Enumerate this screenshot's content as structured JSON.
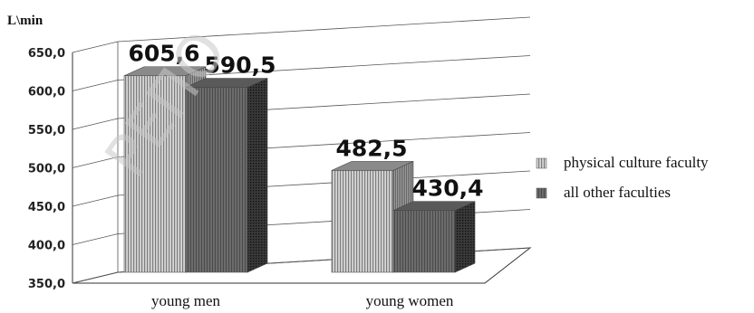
{
  "chart_data": {
    "type": "bar",
    "ylabel": "L\\min",
    "ylim": [
      350,
      650
    ],
    "ytick_labels": [
      "350,0",
      "400,0",
      "450,0",
      "500,0",
      "550,0",
      "600,0",
      "650,0"
    ],
    "categories": [
      "young men",
      "young women"
    ],
    "series": [
      {
        "name": "physical culture faculty",
        "values": [
          605.6,
          482.5
        ],
        "labels": [
          "605,6",
          "482,5"
        ],
        "color": "#9a9a9a"
      },
      {
        "name": "all other faculties",
        "values": [
          590.5,
          430.4
        ],
        "labels": [
          "590,5",
          "430,4"
        ],
        "color": "#6a6a6a"
      }
    ],
    "grid": true,
    "legend": "right",
    "watermark": "РЕПО"
  }
}
